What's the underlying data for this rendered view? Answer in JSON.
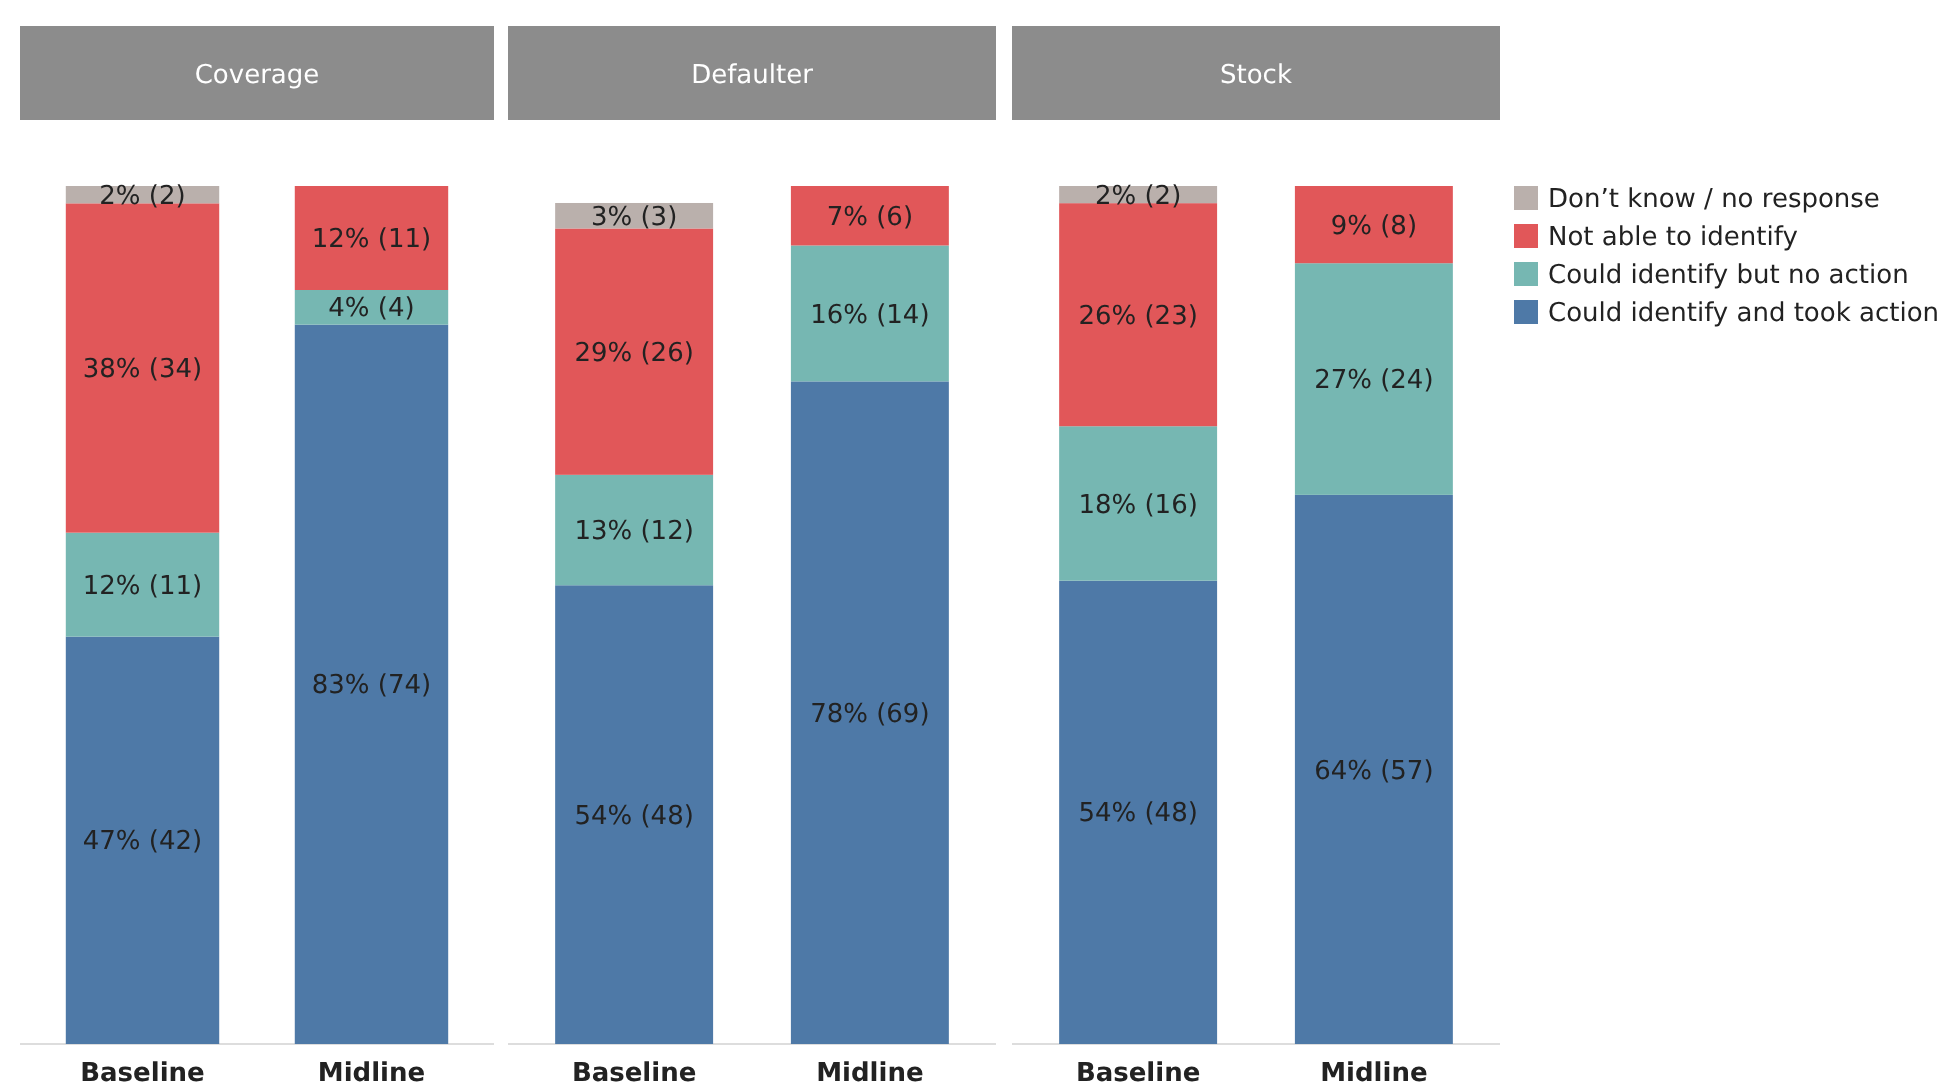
{
  "chart_data": [
    {
      "type": "bar",
      "title": "Coverage",
      "stacked": true,
      "categories": [
        "Baseline",
        "Midline"
      ],
      "tick_labels": "x",
      "legend": false,
      "series": [
        {
          "color": "#4e79a7",
          "values": [
            47,
            83
          ],
          "value_labels": [
            "47% (42)",
            "83% (74)"
          ]
        },
        {
          "color": "#76b7b2",
          "values": [
            12,
            4
          ],
          "value_labels": [
            "12% (11)",
            "4% (4)"
          ]
        },
        {
          "color": "#e15759",
          "values": [
            38,
            12
          ],
          "value_labels": [
            "38% (34)",
            "12% (11)"
          ]
        },
        {
          "color": "#bab0ac",
          "values": [
            2,
            null
          ],
          "value_labels": [
            "2% (2)",
            null
          ]
        }
      ]
    },
    {
      "type": "bar",
      "title": "Defaulter",
      "stacked": true,
      "categories": [
        "Baseline",
        "Midline"
      ],
      "tick_labels": "x",
      "legend": false,
      "series": [
        {
          "color": "#4e79a7",
          "values": [
            54,
            78
          ],
          "value_labels": [
            "54% (48)",
            "78% (69)"
          ]
        },
        {
          "color": "#76b7b2",
          "values": [
            13,
            16
          ],
          "value_labels": [
            "13% (12)",
            "16% (14)"
          ]
        },
        {
          "color": "#e15759",
          "values": [
            29,
            7
          ],
          "value_labels": [
            "29% (26)",
            "7% (6)"
          ]
        },
        {
          "color": "#bab0ac",
          "values": [
            3,
            null
          ],
          "value_labels": [
            "3% (3)",
            null
          ]
        }
      ]
    },
    {
      "type": "bar",
      "title": "Stock",
      "stacked": true,
      "categories": [
        "Baseline",
        "Midline"
      ],
      "tick_labels": "x",
      "legend": "right",
      "series": [
        {
          "name": "Could identify and took action",
          "color": "#4e79a7",
          "values": [
            54,
            64
          ],
          "value_labels": [
            "54% (48)",
            "64% (57)"
          ]
        },
        {
          "name": "Could identify but no action",
          "color": "#76b7b2",
          "values": [
            18,
            27
          ],
          "value_labels": [
            "18% (16)",
            "27% (24)"
          ]
        },
        {
          "name": "Not able to identify",
          "color": "#e15759",
          "values": [
            26,
            9
          ],
          "value_labels": [
            "26% (23)",
            "9% (8)"
          ]
        },
        {
          "name": "Don’t know / no response",
          "color": "#bab0ac",
          "values": [
            2,
            null
          ],
          "value_labels": [
            "2% (2)",
            null
          ]
        }
      ]
    }
  ]
}
